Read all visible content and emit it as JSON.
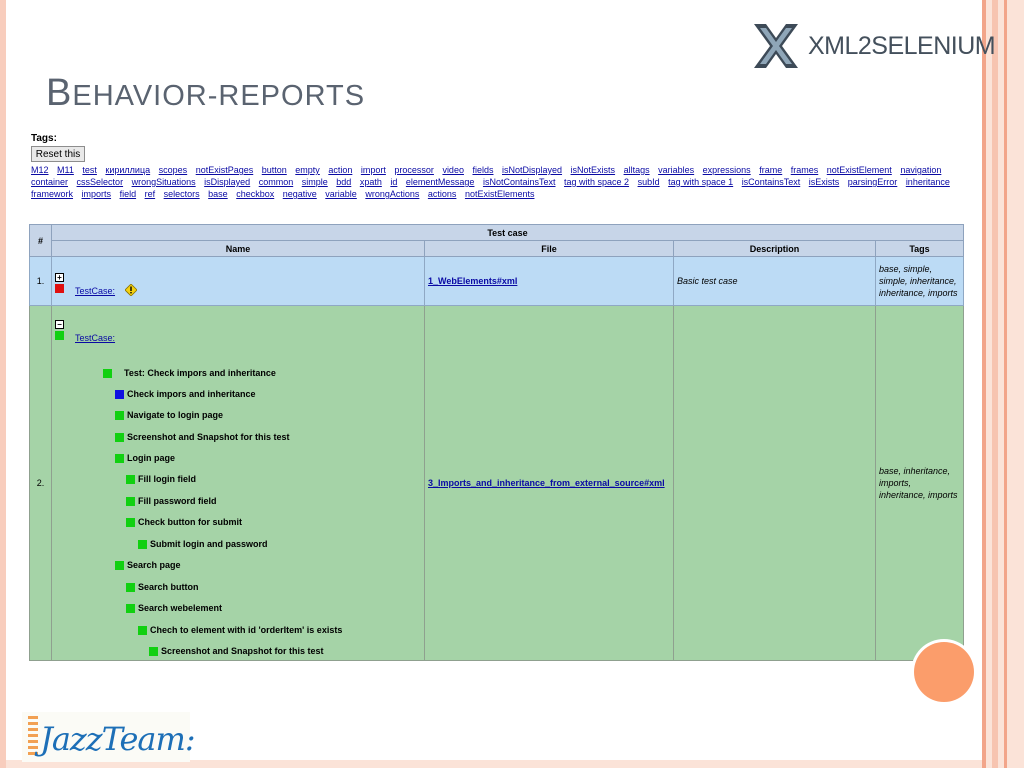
{
  "slide": {
    "title_cap": "B",
    "title_rest": "EHAVIOR-REPORTS",
    "logo_text": "XML2SELENIUM",
    "bottom_logo_text": "JazzTeam:"
  },
  "tags": {
    "label": "Tags:",
    "reset_label": "Reset this",
    "links": [
      "M12",
      "M11",
      "test",
      "кириллица",
      "scopes",
      "notExistPages",
      "button",
      "empty",
      "action",
      "import",
      "processor",
      "video",
      "fields",
      "isNotDisplayed",
      "isNotExists",
      "alltags",
      "variables",
      "expressions",
      "frame",
      "frames",
      "notExistElement",
      "navigation",
      "container",
      "cssSelector",
      "wrongSituations",
      "isDisplayed",
      "common",
      "simple",
      "bdd",
      "xpath",
      "id",
      "elementMessage",
      "isNotContainsText",
      "tag with space 2",
      "subId",
      "tag with space 1",
      "isContainsText",
      "isExists",
      "parsingError",
      "inheritance",
      "framework",
      "imports",
      "field",
      "ref",
      "selectors",
      "base",
      "checkbox",
      "negative",
      "variable",
      "wrongActions",
      "actions",
      "notExistElements"
    ]
  },
  "table": {
    "col_num": "#",
    "col_group": "Test case",
    "col_name": "Name",
    "col_file": "File",
    "col_desc": "Description",
    "col_tags": "Tags",
    "rows": [
      {
        "num": "1.",
        "toggle": "+",
        "testcase": "TestCase:",
        "file": "1_WebElements#xml",
        "description": "Basic test case",
        "tags": "base, simple, simple, inheritance, inheritance, imports"
      },
      {
        "num": "2.",
        "toggle": "−",
        "testcase": "TestCase:",
        "file": "3_Imports_and_inheritance_from_external_source#xml",
        "description": "",
        "tags": "base, inheritance, imports, inheritance, imports",
        "steps": [
          "Test: Check impors and inheritance",
          "Check impors and inheritance",
          "Navigate to login page",
          "Screenshot and Snapshot for this test",
          "Login page",
          "Fill login field",
          "Fill password field",
          "Check button for submit",
          "Submit login and password",
          "Search page",
          "Search button",
          "Search webelement",
          "Chech to element with id 'orderItem' is exists",
          "Screenshot and Snapshot for this test"
        ]
      }
    ]
  },
  "colors": {
    "row1_bg": "#bcdbf5",
    "row2_bg": "#a5d3a7",
    "header_bg": "#c7d5e8",
    "link": "#0a0aa4",
    "status_pass": "#11d011",
    "status_info": "#1010e0",
    "status_fail": "#e01010"
  },
  "icons": {
    "warning": "warning-icon",
    "expand": "plus-toggle-icon",
    "collapse": "minus-toggle-icon"
  }
}
